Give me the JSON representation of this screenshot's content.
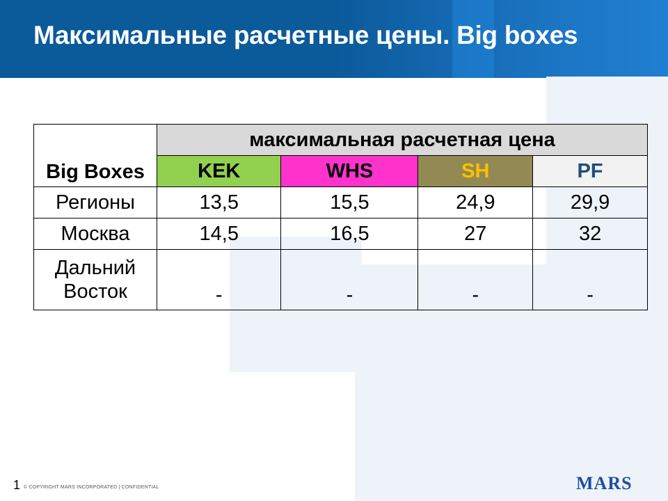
{
  "header": {
    "title": "Максимальные расчетные цены. Big boxes"
  },
  "table": {
    "corner": "Big Boxes",
    "group_header": "максимальная  расчетная  цена",
    "columns": [
      "KEK",
      "WHS",
      "SH",
      "PF"
    ],
    "rows": [
      {
        "region": "Регионы",
        "values": [
          "13,5",
          "15,5",
          "24,9",
          "29,9"
        ]
      },
      {
        "region": "Москва",
        "values": [
          "14,5",
          "16,5",
          "27",
          "32"
        ]
      },
      {
        "region": "Дальний Восток",
        "values": [
          "-",
          "-",
          "-",
          "-"
        ]
      }
    ]
  },
  "footer": {
    "page_number": "1",
    "copyright": "© COPYRIGHT MARS INCORPORATED  |  CONFIDENTIAL",
    "logo": "MARS"
  },
  "colors": {
    "header_bg": "#0b5a9a",
    "kek": "#92d050",
    "whs": "#ff33cc",
    "sh": "#938953",
    "pf": "#f2f2f2",
    "group_header": "#d9d9d9"
  }
}
